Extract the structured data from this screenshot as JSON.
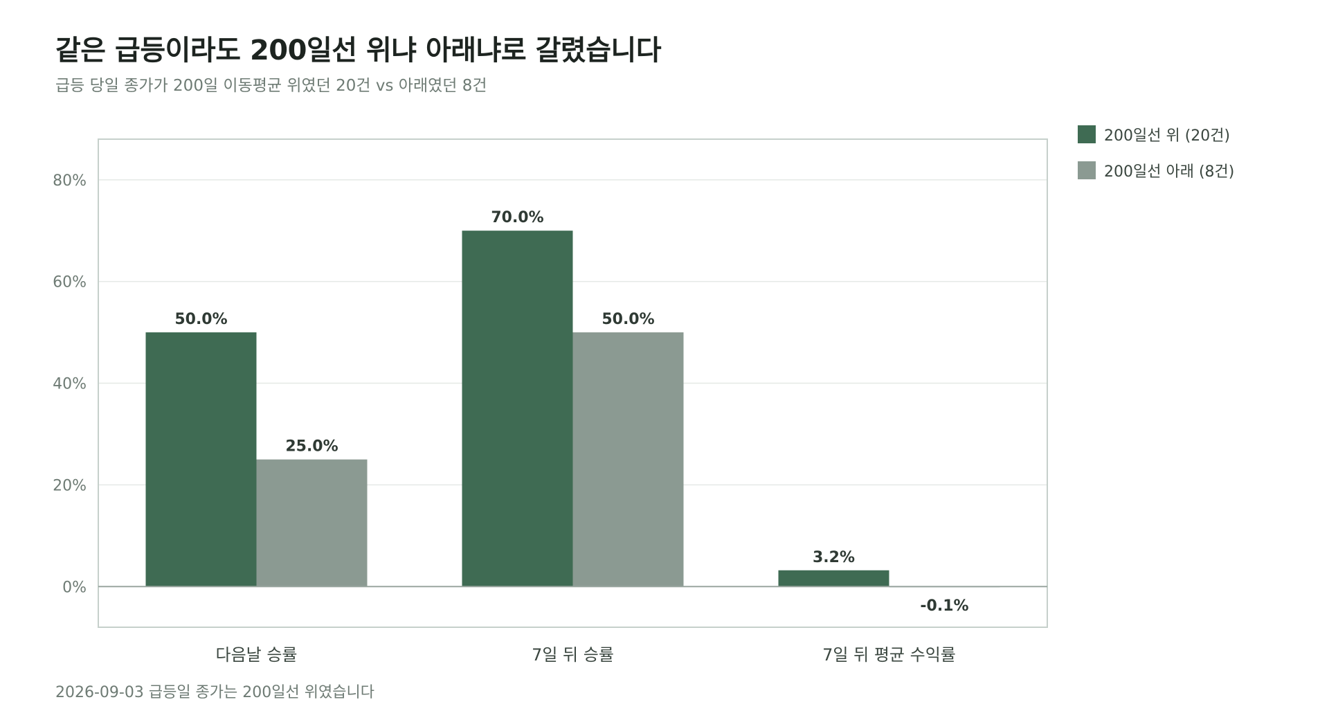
{
  "title": "같은 급등이라도 200일선 위냐 아래냐로 갈렸습니다",
  "subtitle": "급등 당일 종가가 200일 이동평균 위였던 20건 vs 아래였던 8건",
  "footnote": "2026-09-03 급등일 종가는 200일선 위였습니다",
  "colors": {
    "above": "#3f6b53",
    "below": "#8b9a92",
    "grid": "#e5e9e6",
    "frame": "#c6d0cb",
    "axis_text": "#6e7b74",
    "label_text": "#2f3a34"
  },
  "chart_data": {
    "type": "bar",
    "categories": [
      "다음날 승률",
      "7일 뒤 승률",
      "7일 뒤 평균 수익률"
    ],
    "series": [
      {
        "name": "200일선 위 (20건)",
        "values": [
          50.0,
          70.0,
          3.2
        ],
        "labels": [
          "50.0%",
          "70.0%",
          "3.2%"
        ],
        "color": "#3f6b53"
      },
      {
        "name": "200일선 아래 (8건)",
        "values": [
          25.0,
          50.0,
          -0.1
        ],
        "labels": [
          "25.0%",
          "50.0%",
          "-0.1%"
        ],
        "color": "#8b9a92"
      }
    ],
    "yticks": [
      0,
      20,
      40,
      60,
      80
    ],
    "ytick_labels": [
      "0%",
      "20%",
      "40%",
      "60%",
      "80%"
    ],
    "ylim": [
      -8,
      88
    ],
    "grid": true,
    "legend_position": "top-right outside"
  }
}
